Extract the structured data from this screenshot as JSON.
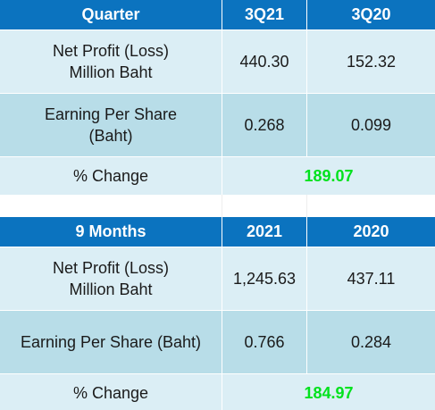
{
  "quarter_table": {
    "headers": [
      "Quarter",
      "3Q21",
      "3Q20"
    ],
    "rows": [
      {
        "label_line1": "Net Profit (Loss)",
        "label_line2": "Million Baht",
        "v1": "440.30",
        "v2": "152.32"
      },
      {
        "label_line1": "Earning Per Share",
        "label_line2": "(Baht)",
        "v1": "0.268",
        "v2": "0.099"
      }
    ],
    "change_label": "% Change",
    "change_value": "189.07"
  },
  "nine_month_table": {
    "headers": [
      "9 Months",
      "2021",
      "2020"
    ],
    "rows": [
      {
        "label_line1": "Net Profit (Loss)",
        "label_line2": "Million Baht",
        "v1": "1,245.63",
        "v2": "437.11"
      },
      {
        "label": "Earning Per Share (Baht)",
        "v1": "0.766",
        "v2": "0.284"
      }
    ],
    "change_label": "% Change",
    "change_value": "184.97"
  },
  "colors": {
    "header_bg": "#0b73bf",
    "row_light": "#dbeef5",
    "row_mid": "#b8dde8",
    "change_text": "#00e21d"
  }
}
